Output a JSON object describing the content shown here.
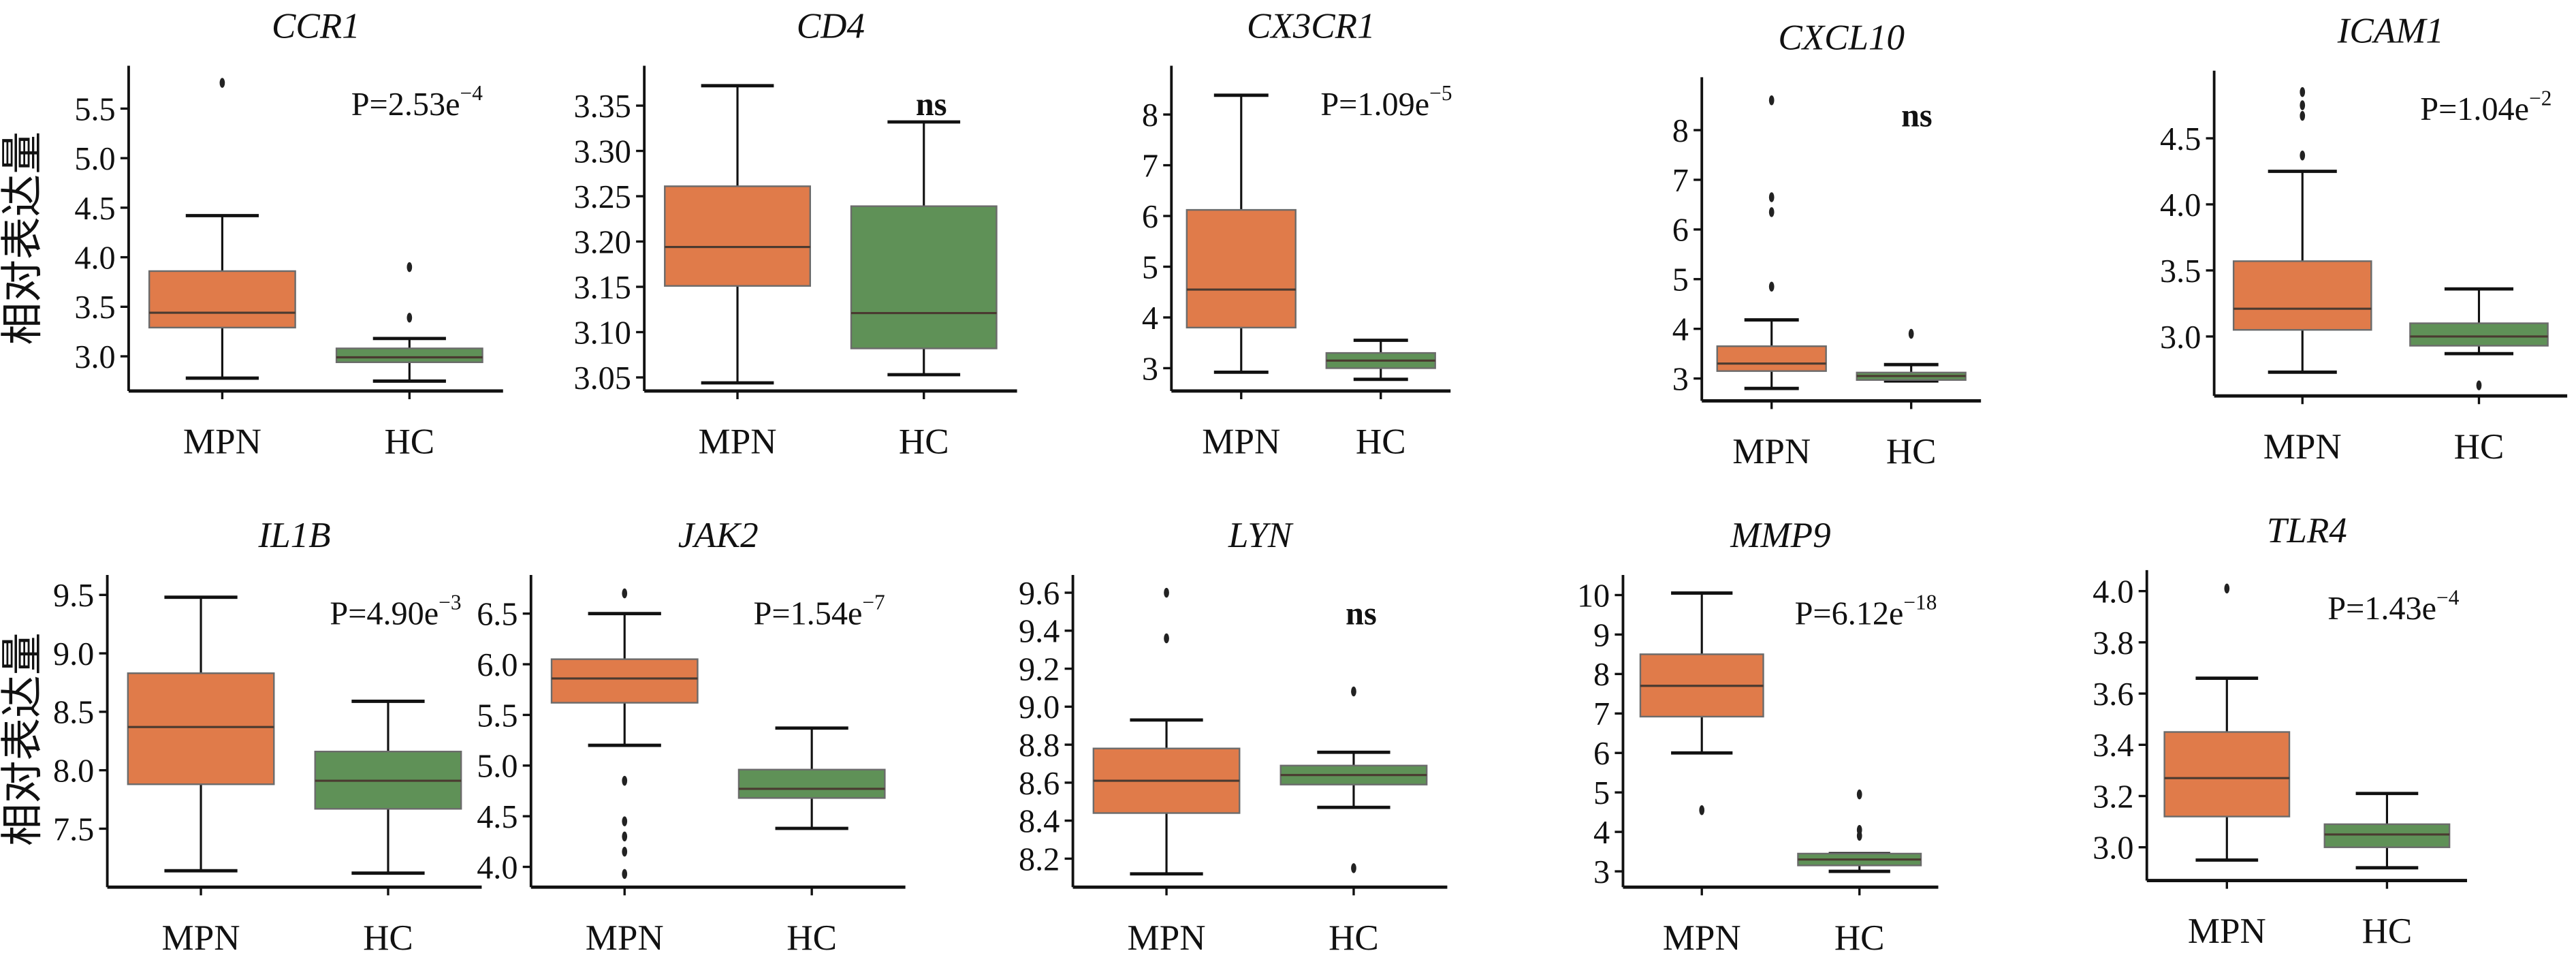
{
  "ylabel": "相对表达量",
  "colors": {
    "MPN": "#E07B4A",
    "HC": "#5F9157",
    "median": "#4a3a30",
    "axis": "#111111"
  },
  "chart_data": [
    {
      "type": "box",
      "title": "CCR1",
      "categories": [
        "MPN",
        "HC"
      ],
      "ylim": [
        2.65,
        5.85
      ],
      "yticks": [
        "3.0",
        "3.5",
        "4.0",
        "4.5",
        "5.0",
        "5.5"
      ],
      "annotation": "P=2.53e",
      "annotation_exp": "−4",
      "series": [
        {
          "name": "MPN",
          "whislo": 2.78,
          "q1": 3.29,
          "med": 3.44,
          "q3": 3.86,
          "whishi": 4.42,
          "fliers": [
            5.76
          ]
        },
        {
          "name": "HC",
          "whislo": 2.75,
          "q1": 2.94,
          "med": 2.99,
          "q3": 3.08,
          "whishi": 3.18,
          "fliers": [
            3.39,
            3.9
          ]
        }
      ]
    },
    {
      "type": "box",
      "title": "CD4",
      "categories": [
        "MPN",
        "HC"
      ],
      "ylim": [
        3.035,
        3.385
      ],
      "yticks": [
        "3.05",
        "3.10",
        "3.15",
        "3.20",
        "3.25",
        "3.30",
        "3.35"
      ],
      "annotation": "ns",
      "annotation_exp": "",
      "series": [
        {
          "name": "MPN",
          "whislo": 3.044,
          "q1": 3.151,
          "med": 3.194,
          "q3": 3.261,
          "whishi": 3.372,
          "fliers": []
        },
        {
          "name": "HC",
          "whislo": 3.053,
          "q1": 3.082,
          "med": 3.121,
          "q3": 3.239,
          "whishi": 3.332,
          "fliers": []
        }
      ]
    },
    {
      "type": "box",
      "title": "CX3CR1",
      "categories": [
        "MPN",
        "HC"
      ],
      "ylim": [
        2.55,
        8.8
      ],
      "yticks": [
        "3",
        "4",
        "5",
        "6",
        "7",
        "8"
      ],
      "annotation": "P=1.09e",
      "annotation_exp": "−5",
      "series": [
        {
          "name": "MPN",
          "whislo": 2.92,
          "q1": 3.8,
          "med": 4.55,
          "q3": 6.12,
          "whishi": 8.38,
          "fliers": []
        },
        {
          "name": "HC",
          "whislo": 2.78,
          "q1": 3.0,
          "med": 3.15,
          "q3": 3.3,
          "whishi": 3.55,
          "fliers": []
        }
      ]
    },
    {
      "type": "box",
      "title": "CXCL10",
      "categories": [
        "MPN",
        "HC"
      ],
      "ylim": [
        2.55,
        8.9
      ],
      "yticks": [
        "3",
        "4",
        "5",
        "6",
        "7",
        "8"
      ],
      "annotation": "ns",
      "annotation_exp": "",
      "series": [
        {
          "name": "MPN",
          "whislo": 2.8,
          "q1": 3.15,
          "med": 3.3,
          "q3": 3.65,
          "whishi": 4.18,
          "fliers": [
            4.85,
            6.35,
            6.65,
            8.6
          ]
        },
        {
          "name": "HC",
          "whislo": 2.95,
          "q1": 2.97,
          "med": 3.05,
          "q3": 3.12,
          "whishi": 3.28,
          "fliers": [
            3.9
          ]
        }
      ]
    },
    {
      "type": "box",
      "title": "ICAM1",
      "categories": [
        "MPN",
        "HC"
      ],
      "ylim": [
        2.55,
        4.95
      ],
      "yticks": [
        "3.0",
        "3.5",
        "4.0",
        "4.5"
      ],
      "annotation": "P=1.04e",
      "annotation_exp": "−2",
      "series": [
        {
          "name": "MPN",
          "whislo": 2.73,
          "q1": 3.05,
          "med": 3.21,
          "q3": 3.57,
          "whishi": 4.25,
          "fliers": [
            4.37,
            4.67,
            4.75,
            4.85
          ]
        },
        {
          "name": "HC",
          "whislo": 2.87,
          "q1": 2.93,
          "med": 3.0,
          "q3": 3.1,
          "whishi": 3.36,
          "fliers": [
            2.63
          ]
        }
      ]
    },
    {
      "type": "box",
      "title": "IL1B",
      "categories": [
        "MPN",
        "HC"
      ],
      "ylim": [
        7.0,
        9.6
      ],
      "yticks": [
        "7.5",
        "8.0",
        "8.5",
        "9.0",
        "9.5"
      ],
      "annotation": "P=4.90e",
      "annotation_exp": "−3",
      "series": [
        {
          "name": "MPN",
          "whislo": 7.14,
          "q1": 7.88,
          "med": 8.37,
          "q3": 8.83,
          "whishi": 9.48,
          "fliers": []
        },
        {
          "name": "HC",
          "whislo": 7.12,
          "q1": 7.67,
          "med": 7.91,
          "q3": 8.16,
          "whishi": 8.59,
          "fliers": []
        }
      ]
    },
    {
      "type": "box",
      "title": "JAK2",
      "categories": [
        "MPN",
        "HC"
      ],
      "ylim": [
        3.8,
        6.8
      ],
      "yticks": [
        "4.0",
        "4.5",
        "5.0",
        "5.5",
        "6.0",
        "6.5"
      ],
      "annotation": "P=1.54e",
      "annotation_exp": "−7",
      "series": [
        {
          "name": "MPN",
          "whislo": 5.2,
          "q1": 5.62,
          "med": 5.86,
          "q3": 6.05,
          "whishi": 6.5,
          "fliers": [
            6.7,
            4.85,
            4.45,
            4.3,
            4.15,
            3.93
          ]
        },
        {
          "name": "HC",
          "whislo": 4.38,
          "q1": 4.68,
          "med": 4.77,
          "q3": 4.96,
          "whishi": 5.37,
          "fliers": []
        }
      ]
    },
    {
      "type": "box",
      "title": "LYN",
      "categories": [
        "MPN",
        "HC"
      ],
      "ylim": [
        8.05,
        9.65
      ],
      "yticks": [
        "8.2",
        "8.4",
        "8.6",
        "8.8",
        "9.0",
        "9.2",
        "9.4",
        "9.6"
      ],
      "annotation": "ns",
      "annotation_exp": "",
      "series": [
        {
          "name": "MPN",
          "whislo": 8.12,
          "q1": 8.44,
          "med": 8.61,
          "q3": 8.78,
          "whishi": 8.93,
          "fliers": [
            9.36,
            9.6
          ]
        },
        {
          "name": "HC",
          "whislo": 8.47,
          "q1": 8.59,
          "med": 8.64,
          "q3": 8.69,
          "whishi": 8.76,
          "fliers": [
            8.15,
            9.08
          ]
        }
      ]
    },
    {
      "type": "box",
      "title": "MMP9",
      "categories": [
        "MPN",
        "HC"
      ],
      "ylim": [
        2.6,
        10.3
      ],
      "yticks": [
        "3",
        "4",
        "5",
        "6",
        "7",
        "8",
        "9",
        "10"
      ],
      "annotation": "P=6.12e",
      "annotation_exp": "−18",
      "series": [
        {
          "name": "MPN",
          "whislo": 6.0,
          "q1": 6.92,
          "med": 7.7,
          "q3": 8.5,
          "whishi": 10.05,
          "fliers": [
            4.55
          ]
        },
        {
          "name": "HC",
          "whislo": 3.0,
          "q1": 3.15,
          "med": 3.3,
          "q3": 3.45,
          "whishi": 3.45,
          "fliers": [
            3.9,
            4.05,
            4.95
          ]
        }
      ]
    },
    {
      "type": "box",
      "title": "TLR4",
      "categories": [
        "MPN",
        "HC"
      ],
      "ylim": [
        2.87,
        4.05
      ],
      "yticks": [
        "3.0",
        "3.2",
        "3.4",
        "3.6",
        "3.8",
        "4.0"
      ],
      "annotation": "P=1.43e",
      "annotation_exp": "−4",
      "series": [
        {
          "name": "MPN",
          "whislo": 2.95,
          "q1": 3.12,
          "med": 3.27,
          "q3": 3.45,
          "whishi": 3.66,
          "fliers": [
            4.01
          ]
        },
        {
          "name": "HC",
          "whislo": 2.92,
          "q1": 3.0,
          "med": 3.05,
          "q3": 3.09,
          "whishi": 3.21,
          "fliers": []
        }
      ]
    }
  ]
}
